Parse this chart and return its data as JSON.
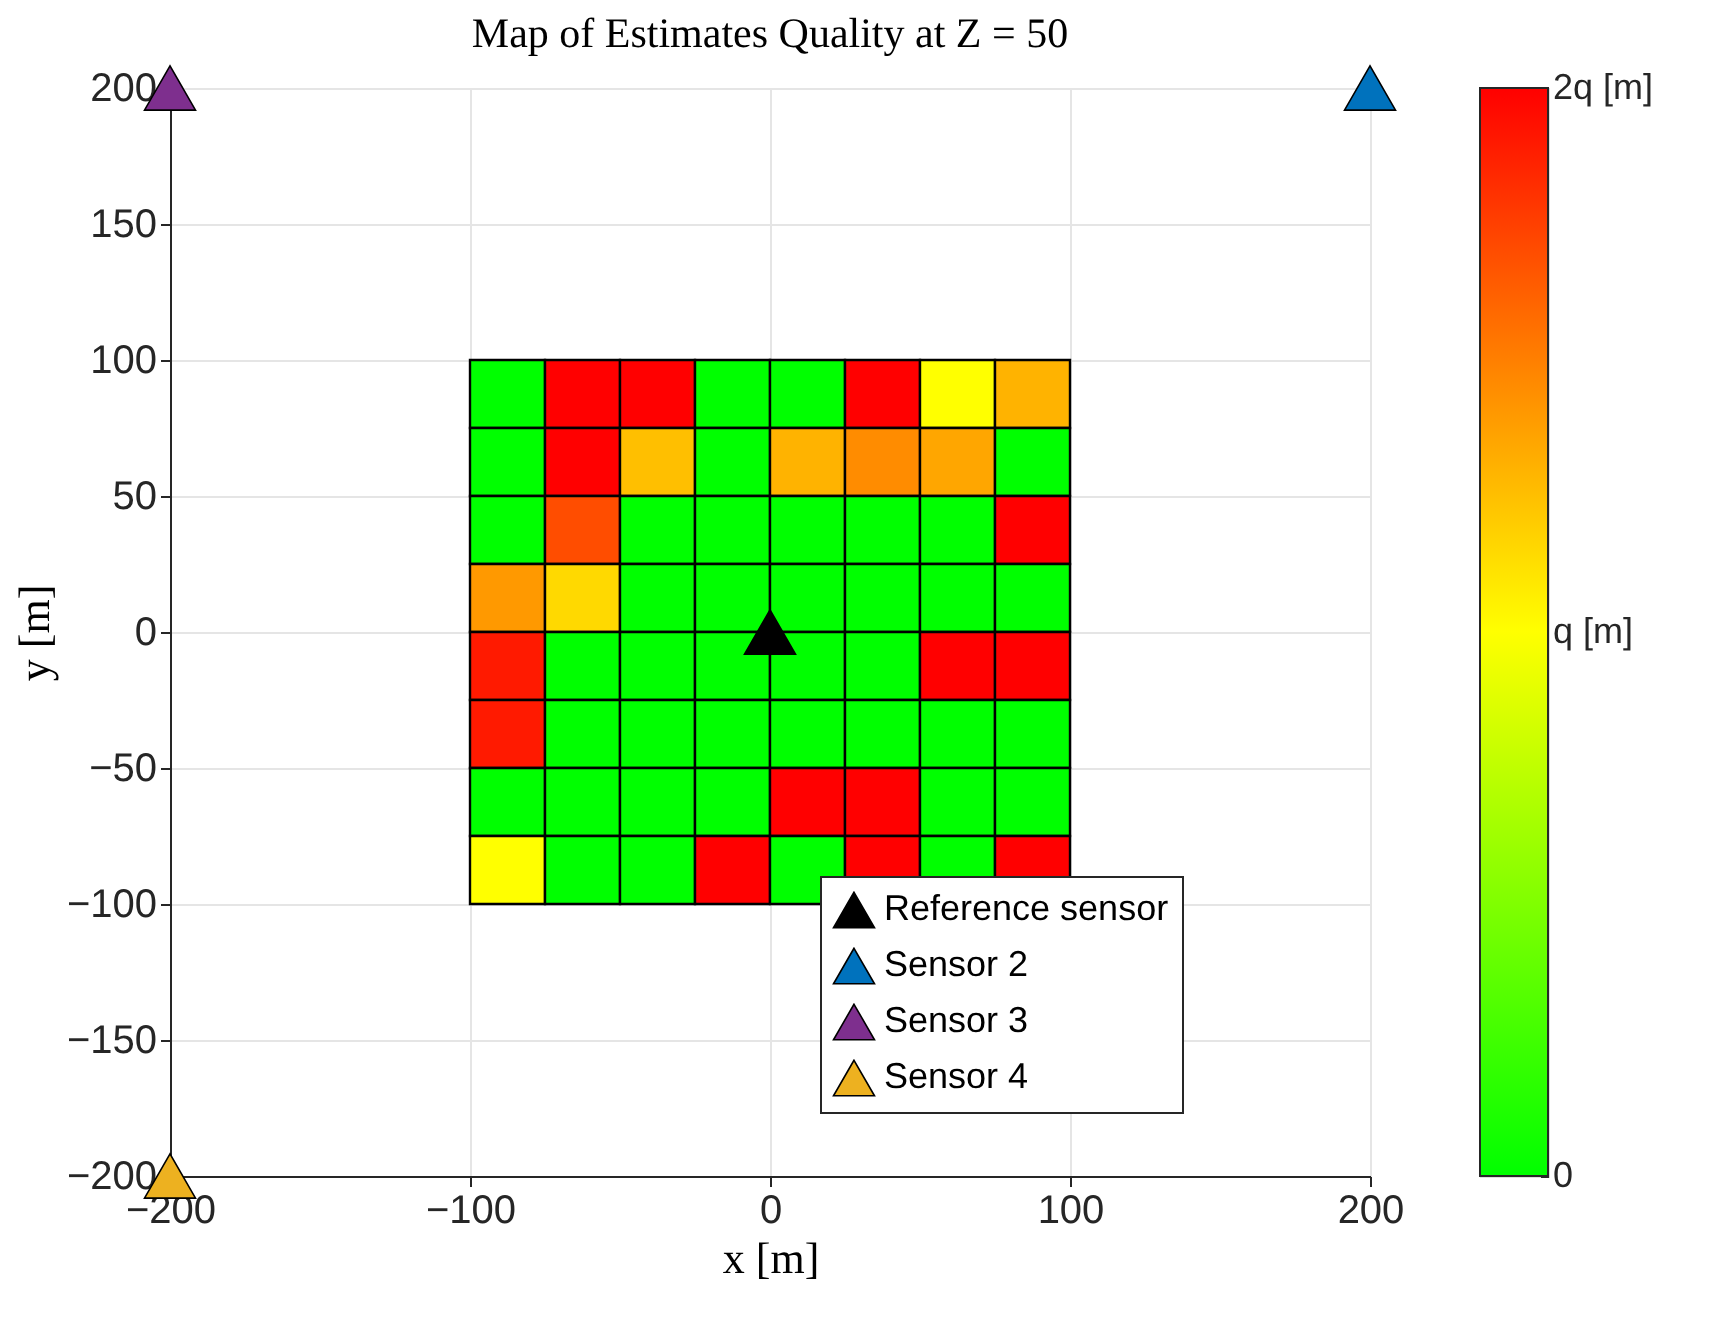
{
  "chart_data": {
    "type": "heatmap",
    "title": "Map of Estimates Quality at Z = 50",
    "xlabel": "x [m]",
    "ylabel": "y [m]",
    "x": [
      -87.5,
      -62.5,
      -37.5,
      -12.5,
      12.5,
      37.5,
      62.5,
      87.5
    ],
    "y": [
      87.5,
      62.5,
      37.5,
      12.5,
      -12.5,
      -37.5,
      -62.5,
      -87.5
    ],
    "cells": [
      [
        0,
        2,
        2,
        0,
        0,
        2,
        1,
        1.3
      ],
      [
        0,
        2,
        1.25,
        0,
        1.3,
        1.45,
        1.35,
        0
      ],
      [
        0,
        1.7,
        0,
        0,
        0,
        0,
        0,
        2
      ],
      [
        1.4,
        1.15,
        0,
        0,
        0,
        0,
        0,
        0
      ],
      [
        1.9,
        0,
        0,
        0,
        0,
        0,
        2,
        2
      ],
      [
        1.9,
        0,
        0,
        0,
        0,
        0,
        0,
        0
      ],
      [
        0,
        0,
        0,
        0,
        2,
        2,
        0,
        0
      ],
      [
        1,
        0,
        0,
        2,
        0,
        2,
        0,
        2
      ]
    ],
    "colors": [
      "#00ff00",
      "#ffff00",
      "#ff0000"
    ],
    "clim": [
      0,
      2
    ],
    "cticks": [
      {
        "value": 0,
        "label": "0"
      },
      {
        "value": 1,
        "label": "q  [m]"
      },
      {
        "value": 2,
        "label": "2q [m]"
      }
    ],
    "xlim": [
      -200,
      200
    ],
    "xticks": [
      -200,
      -100,
      0,
      100,
      200
    ],
    "ylim": [
      -200,
      200
    ],
    "yticks": [
      -200,
      -150,
      -100,
      -50,
      0,
      50,
      100,
      150,
      200
    ],
    "series": [
      {
        "type": "scatter",
        "name": "Reference sensor",
        "color": "#000000",
        "x": [
          0
        ],
        "values": [
          0
        ]
      },
      {
        "type": "scatter",
        "name": "Sensor 2",
        "color": "#0072bd",
        "x": [
          200
        ],
        "values": [
          200
        ]
      },
      {
        "type": "scatter",
        "name": "Sensor 3",
        "color": "#7e2f8e",
        "x": [
          -200
        ],
        "values": [
          200
        ]
      },
      {
        "type": "scatter",
        "name": "Sensor 4",
        "color": "#edb120",
        "x": [
          -200
        ],
        "values": [
          -200
        ]
      }
    ],
    "marker": "triangle",
    "grid": true,
    "legend": "bottom right"
  }
}
